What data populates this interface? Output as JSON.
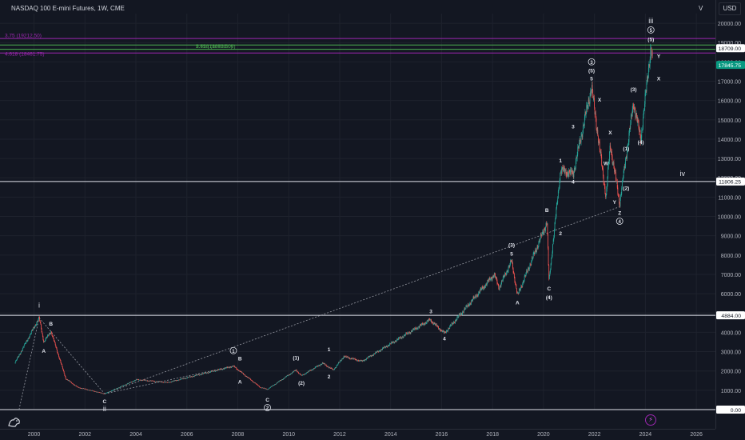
{
  "header": {
    "title": "NASDAQ 100 E-mini Futures, 1W, CME",
    "interval_menu": "V",
    "currency": "USD"
  },
  "colors": {
    "background": "#131722",
    "grid": "#1e222d",
    "up": "#26a69a",
    "down": "#ef5350",
    "level_line": "#e0e3eb",
    "fib_purple": "#9c27b0",
    "fib_green": "#4caf50",
    "price_tag": "#089981"
  },
  "chart_data": {
    "type": "candlestick",
    "x_axis": {
      "type": "time",
      "range": [
        "1998-09-01",
        "2026-10-01"
      ],
      "tick_labels": [
        "2000",
        "2002",
        "2004",
        "2006",
        "2008",
        "2010",
        "2012",
        "2014",
        "2016",
        "2018",
        "2020",
        "2022",
        "2024",
        "2026"
      ]
    },
    "y_axis": {
      "range": [
        0,
        20500
      ],
      "tick_labels": [
        "1000.00",
        "2000.00",
        "3000.00",
        "4000.00",
        "5000.00",
        "6000.00",
        "7000.00",
        "8000.00",
        "9000.00",
        "10000.00",
        "11000.00",
        "12000.00",
        "13000.00",
        "14000.00",
        "15000.00",
        "16000.00",
        "17000.00",
        "18000.00",
        "19000.00",
        "20000.00"
      ]
    },
    "price_path": [
      {
        "date": "1999-04-01",
        "price": 2400
      },
      {
        "date": "2000-03-15",
        "price": 4750
      },
      {
        "date": "2000-05-20",
        "price": 3500
      },
      {
        "date": "2000-09-01",
        "price": 4050
      },
      {
        "date": "2001-04-01",
        "price": 1600
      },
      {
        "date": "2001-09-20",
        "price": 1150
      },
      {
        "date": "2002-10-10",
        "price": 820
      },
      {
        "date": "2004-01-15",
        "price": 1550
      },
      {
        "date": "2005-04-01",
        "price": 1400
      },
      {
        "date": "2007-10-30",
        "price": 2250
      },
      {
        "date": "2008-11-20",
        "price": 1150
      },
      {
        "date": "2009-03-01",
        "price": 1050
      },
      {
        "date": "2010-04-15",
        "price": 2050
      },
      {
        "date": "2010-07-01",
        "price": 1750
      },
      {
        "date": "2011-05-01",
        "price": 2400
      },
      {
        "date": "2011-10-01",
        "price": 2050
      },
      {
        "date": "2012-03-01",
        "price": 2750
      },
      {
        "date": "2012-11-15",
        "price": 2500
      },
      {
        "date": "2015-07-20",
        "price": 4650
      },
      {
        "date": "2016-02-10",
        "price": 3950
      },
      {
        "date": "2018-01-25",
        "price": 7000
      },
      {
        "date": "2018-04-01",
        "price": 6300
      },
      {
        "date": "2018-10-01",
        "price": 7700
      },
      {
        "date": "2018-12-24",
        "price": 5900
      },
      {
        "date": "2020-02-20",
        "price": 9700
      },
      {
        "date": "2020-03-20",
        "price": 6630
      },
      {
        "date": "2020-09-01",
        "price": 12400
      },
      {
        "date": "2021-03-01",
        "price": 12200
      },
      {
        "date": "2021-11-20",
        "price": 16700
      },
      {
        "date": "2022-06-15",
        "price": 11000
      },
      {
        "date": "2022-08-15",
        "price": 13700
      },
      {
        "date": "2022-12-28",
        "price": 10700
      },
      {
        "date": "2023-07-15",
        "price": 15900
      },
      {
        "date": "2023-10-27",
        "price": 14000
      },
      {
        "date": "2024-03-20",
        "price": 18800
      },
      {
        "date": "2024-04-15",
        "price": 17850
      }
    ],
    "horizontal_levels": [
      {
        "price": 11806.25,
        "label": "11806.25"
      },
      {
        "price": 4884.0,
        "label": "4884.00"
      },
      {
        "price": 0.0,
        "label": "0.00"
      }
    ],
    "fib_levels": [
      {
        "price": 19212.5,
        "label": "3.75 (19212.50)",
        "color": "#9c27b0"
      },
      {
        "price": 18872.5,
        "label": "5.75 (18872.50)",
        "color": "#4caf50"
      },
      {
        "price": 18650,
        "label": "2.618 (18650.00)",
        "color": "#4caf50"
      },
      {
        "price": 18461.75,
        "label": "4.618 (18461.75)",
        "color": "#9c27b0"
      }
    ],
    "price_tags": [
      {
        "price": 18709.0,
        "label": "18709.00",
        "style": "white"
      },
      {
        "price": 17845.75,
        "label": "17845.75",
        "style": "green"
      },
      {
        "price": 11806.25,
        "label": "11806.25",
        "style": "white"
      },
      {
        "price": 4884.0,
        "label": "4884.00",
        "style": "white"
      },
      {
        "price": 0.0,
        "label": "0.00",
        "style": "white"
      }
    ],
    "trend_lines": [
      {
        "from": {
          "date": "2000-03-15",
          "price": 4750
        },
        "to": {
          "date": "2002-10-10",
          "price": 820
        }
      },
      {
        "from": {
          "date": "2002-10-10",
          "price": 820
        },
        "to": {
          "date": "2007-10-30",
          "price": 2250
        }
      },
      {
        "from": {
          "date": "2002-10-10",
          "price": 820
        },
        "to": {
          "date": "2022-12-28",
          "price": 10500
        }
      },
      {
        "from": {
          "date": "1999-06-01",
          "price": 0
        },
        "to": {
          "date": "2000-03-15",
          "price": 4750
        }
      }
    ],
    "wave_labels": [
      {
        "text": "i",
        "date": "2000-03-15",
        "price": 5280
      },
      {
        "text": "B",
        "date": "2000-09-01",
        "price": 4350
      },
      {
        "text": "A",
        "date": "2000-05-20",
        "price": 2950
      },
      {
        "text": "C",
        "date": "2002-10-10",
        "price": 330
      },
      {
        "text": "ii",
        "date": "2002-10-10",
        "price": -80
      },
      {
        "text": "1",
        "date": "2007-10-30",
        "price": 2950,
        "circled": true
      },
      {
        "text": "B",
        "date": "2008-02-01",
        "price": 2550
      },
      {
        "text": "A",
        "date": "2008-02-01",
        "price": 1350
      },
      {
        "text": "C",
        "date": "2009-03-01",
        "price": 420
      },
      {
        "text": "2",
        "date": "2009-03-01",
        "price": 0,
        "circled": true
      },
      {
        "text": "(1)",
        "date": "2010-04-15",
        "price": 2580
      },
      {
        "text": "(2)",
        "date": "2010-07-01",
        "price": 1280
      },
      {
        "text": "1",
        "date": "2011-08-01",
        "price": 3020
      },
      {
        "text": "2",
        "date": "2011-08-01",
        "price": 1620
      },
      {
        "text": "3",
        "date": "2015-08-01",
        "price": 4990
      },
      {
        "text": "4",
        "date": "2016-02-10",
        "price": 3580
      },
      {
        "text": "(3)",
        "date": "2018-10-01",
        "price": 8420
      },
      {
        "text": "5",
        "date": "2018-10-01",
        "price": 7980
      },
      {
        "text": "A",
        "date": "2018-12-24",
        "price": 5450
      },
      {
        "text": "C",
        "date": "2020-03-20",
        "price": 6180
      },
      {
        "text": "(4)",
        "date": "2020-03-20",
        "price": 5720
      },
      {
        "text": "B",
        "date": "2020-02-20",
        "price": 10220
      },
      {
        "text": "1",
        "date": "2020-09-01",
        "price": 12800
      },
      {
        "text": "2",
        "date": "2020-09-01",
        "price": 9030
      },
      {
        "text": "3",
        "date": "2021-03-01",
        "price": 14550
      },
      {
        "text": "4",
        "date": "2021-03-01",
        "price": 11700
      },
      {
        "text": "3",
        "date": "2021-11-20",
        "price": 17900,
        "circled": true
      },
      {
        "text": "(5)",
        "date": "2021-11-20",
        "price": 17450
      },
      {
        "text": "5",
        "date": "2021-11-20",
        "price": 17050
      },
      {
        "text": "X",
        "date": "2022-03-15",
        "price": 15950
      },
      {
        "text": "W",
        "date": "2022-06-15",
        "price": 12650
      },
      {
        "text": "X",
        "date": "2022-08-15",
        "price": 14250
      },
      {
        "text": "Y",
        "date": "2022-10-15",
        "price": 10650
      },
      {
        "text": "Z",
        "date": "2022-12-28",
        "price": 10080
      },
      {
        "text": "4",
        "date": "2022-12-28",
        "price": 9650,
        "circled": true
      },
      {
        "text": "(1)",
        "date": "2023-04-01",
        "price": 13420
      },
      {
        "text": "(2)",
        "date": "2023-04-01",
        "price": 11370
      },
      {
        "text": "(3)",
        "date": "2023-07-15",
        "price": 16480
      },
      {
        "text": "(4)",
        "date": "2023-10-27",
        "price": 13750
      },
      {
        "text": "iii",
        "date": "2024-03-20",
        "price": 20000
      },
      {
        "text": "5",
        "date": "2024-03-20",
        "price": 19550,
        "circled": true
      },
      {
        "text": "(5)",
        "date": "2024-03-20",
        "price": 19080
      },
      {
        "text": "Y",
        "date": "2024-07-10",
        "price": 18200
      },
      {
        "text": "X",
        "date": "2024-07-10",
        "price": 17050
      },
      {
        "text": "iv",
        "date": "2025-06-15",
        "price": 12100
      }
    ]
  }
}
